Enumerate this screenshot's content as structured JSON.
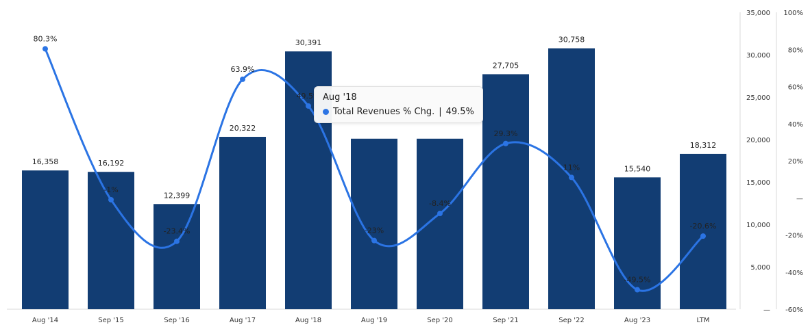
{
  "chart_data": {
    "type": "bar",
    "categories": [
      "Aug '14",
      "Sep '15",
      "Sep '16",
      "Aug '17",
      "Aug '18",
      "Aug '19",
      "Sep '20",
      "Sep '21",
      "Sep '22",
      "Aug '23",
      "LTM"
    ],
    "series": [
      {
        "type": "bar",
        "values": [
          16358,
          16192,
          12399,
          20322,
          30391,
          20100,
          20100,
          27705,
          30758,
          15540,
          18312
        ],
        "data_labels": [
          "16,358",
          "16,192",
          "12,399",
          "20,322",
          "30,391",
          "",
          "",
          "27,705",
          "30,758",
          "15,540",
          "18,312"
        ],
        "color": "#123d73",
        "axis": "left"
      },
      {
        "name": "Total Revenues % Chg.",
        "type": "line",
        "values": [
          80.3,
          -1.0,
          -23.4,
          63.9,
          49.5,
          -23.0,
          -8.4,
          29.3,
          11.0,
          -49.5,
          -20.6
        ],
        "data_labels": [
          "80.3%",
          "-1%",
          "-23.4%",
          "63.9%",
          "49.5%",
          "-23%",
          "-8.4%",
          "29.3%",
          "11%",
          "-49.5%",
          "-20.6%"
        ],
        "color": "#2b74e4",
        "axis": "right"
      }
    ],
    "y_left": {
      "ylim": [
        0,
        35000
      ],
      "ticks": [
        0,
        5000,
        10000,
        15000,
        20000,
        25000,
        30000,
        35000
      ],
      "tick_labels": [
        "—",
        "5,000",
        "10,000",
        "15,000",
        "20,000",
        "25,000",
        "30,000",
        "35,000"
      ]
    },
    "y_right": {
      "ylim": [
        -60,
        100
      ],
      "ticks": [
        -60,
        -40,
        -20,
        0,
        20,
        40,
        60,
        80,
        100
      ],
      "tick_labels": [
        "-60%",
        "-40%",
        "-20%",
        "—",
        "20%",
        "40%",
        "60%",
        "80%",
        "100%"
      ]
    },
    "grid": false,
    "legend": "none"
  },
  "tooltip": {
    "title": "Aug '18",
    "series_name": "Total Revenues % Chg.",
    "separator": "|",
    "value": "49.5%",
    "dot_color": "#2b74e4"
  }
}
